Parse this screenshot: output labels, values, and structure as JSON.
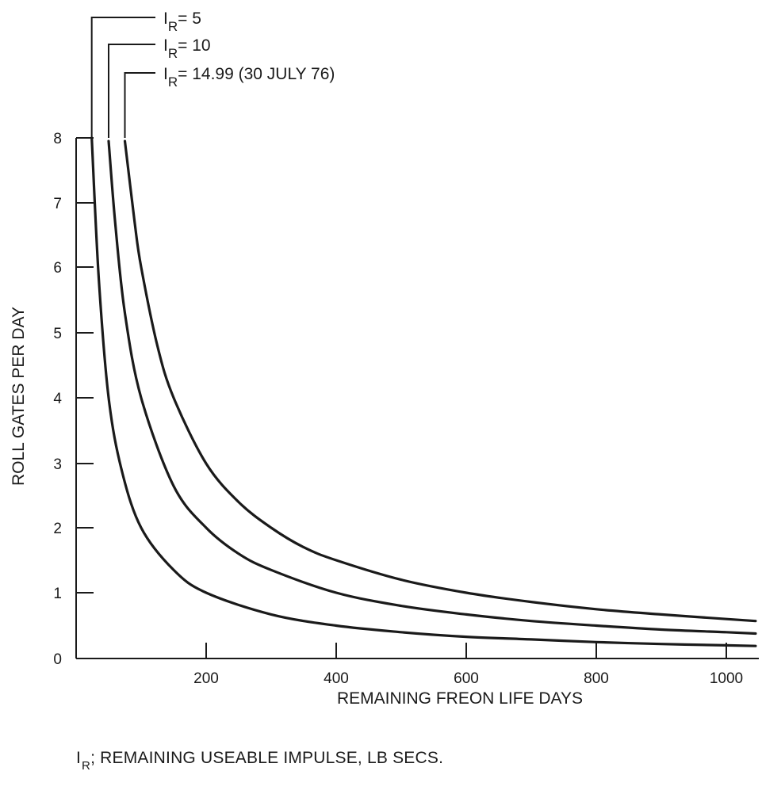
{
  "chart_data": {
    "type": "line",
    "title": "",
    "xlabel": "REMAINING FREON LIFE  DAYS",
    "ylabel": "ROLL GATES PER DAY",
    "xlim": [
      0,
      1050
    ],
    "ylim": [
      0,
      8
    ],
    "x_ticks": [
      200,
      400,
      600,
      800,
      1000
    ],
    "x_tick_labels": [
      "200",
      "400",
      "600",
      "800",
      "1000"
    ],
    "y_ticks": [
      0,
      1,
      2,
      3,
      4,
      5,
      6,
      7,
      8
    ],
    "y_tick_labels": [
      "0",
      "1",
      "2",
      "3",
      "4",
      "5",
      "6",
      "7",
      "8"
    ],
    "grid": false,
    "legend": "callouts at top-left",
    "series": [
      {
        "name": "IR = 5",
        "callout": {
          "sym": "I",
          "sub": "R",
          "rest": "= 5"
        },
        "x": [
          24,
          35,
          50,
          70,
          100,
          150,
          200,
          300,
          400,
          500,
          600,
          700,
          800,
          900,
          1000,
          1045
        ],
        "y": [
          8.0,
          5.8,
          4.0,
          2.9,
          2.0,
          1.35,
          1.0,
          0.67,
          0.5,
          0.4,
          0.33,
          0.29,
          0.25,
          0.22,
          0.2,
          0.19
        ]
      },
      {
        "name": "IR = 10",
        "callout": {
          "sym": "I",
          "sub": "R",
          "rest": "=  10"
        },
        "x": [
          50,
          60,
          75,
          100,
          150,
          200,
          250,
          300,
          400,
          500,
          600,
          700,
          800,
          900,
          1000,
          1045
        ],
        "y": [
          7.95,
          6.7,
          5.3,
          4.0,
          2.65,
          2.0,
          1.6,
          1.35,
          1.0,
          0.8,
          0.67,
          0.57,
          0.5,
          0.44,
          0.4,
          0.38
        ]
      },
      {
        "name": "IR = 14.99 (30 JULY 76)",
        "callout": {
          "sym": "I",
          "sub": "R",
          "rest": "=  14.99 (30 JULY 76)"
        },
        "x": [
          75,
          90,
          100,
          125,
          150,
          200,
          250,
          300,
          350,
          400,
          500,
          600,
          700,
          800,
          900,
          1000,
          1045
        ],
        "y": [
          7.95,
          6.7,
          6.0,
          4.8,
          4.0,
          3.0,
          2.4,
          2.0,
          1.7,
          1.5,
          1.2,
          1.0,
          0.86,
          0.75,
          0.67,
          0.6,
          0.57
        ]
      }
    ]
  },
  "footnote": {
    "sym": "I",
    "sub": "R",
    "text": "; REMAINING USEABLE IMPULSE, LB SECS."
  }
}
